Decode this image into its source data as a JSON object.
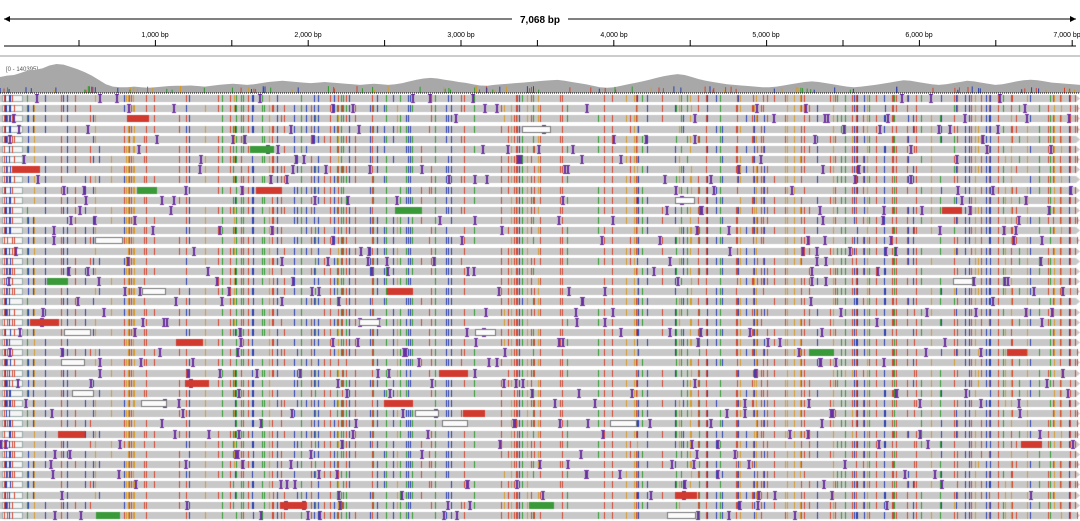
{
  "ruler": {
    "span_label": "7,068 bp",
    "ticks": [
      "1,000 bp",
      "2,000 bp",
      "3,000 bp",
      "4,000 bp",
      "5,000 bp",
      "6,000 bp",
      "7,000 bp"
    ]
  },
  "coverage": {
    "range_label": "[0 - 140395]",
    "profile": [
      0.55,
      0.6,
      0.62,
      0.7,
      0.78,
      0.8,
      0.85,
      0.95,
      1.0,
      0.98,
      0.9,
      0.82,
      0.72,
      0.6,
      0.45,
      0.3,
      0.22,
      0.2,
      0.2,
      0.22,
      0.2,
      0.18,
      0.2,
      0.22,
      0.24,
      0.25,
      0.25,
      0.26,
      0.24,
      0.22,
      0.25,
      0.28,
      0.3,
      0.32,
      0.3,
      0.28,
      0.3,
      0.34,
      0.38,
      0.4,
      0.42,
      0.4,
      0.38,
      0.36,
      0.34,
      0.36,
      0.38,
      0.36,
      0.34,
      0.32,
      0.3,
      0.28,
      0.3,
      0.32,
      0.3,
      0.28,
      0.3,
      0.34,
      0.4,
      0.46,
      0.5,
      0.52,
      0.5,
      0.46,
      0.42,
      0.38,
      0.35,
      0.3,
      0.26,
      0.25,
      0.28,
      0.3,
      0.32,
      0.34,
      0.36,
      0.38,
      0.4,
      0.42,
      0.44,
      0.45,
      0.42,
      0.38,
      0.34,
      0.3,
      0.25,
      0.2,
      0.18,
      0.2,
      0.25,
      0.3,
      0.35,
      0.4,
      0.46,
      0.52,
      0.58,
      0.62,
      0.65,
      0.62,
      0.55,
      0.48,
      0.42,
      0.38,
      0.34,
      0.3,
      0.28,
      0.26,
      0.24,
      0.22,
      0.2,
      0.2,
      0.22,
      0.26,
      0.3,
      0.34,
      0.38,
      0.4,
      0.38,
      0.34,
      0.3,
      0.26,
      0.22,
      0.2,
      0.22,
      0.25,
      0.28,
      0.32,
      0.36,
      0.4,
      0.44,
      0.42,
      0.38,
      0.34,
      0.3,
      0.28,
      0.3,
      0.34,
      0.38,
      0.42,
      0.4,
      0.36,
      0.32,
      0.28,
      0.3,
      0.35,
      0.4,
      0.44,
      0.46,
      0.44,
      0.4,
      0.36,
      0.34,
      0.32,
      0.3,
      0.28
    ]
  },
  "colors": {
    "read": "#c8c8c8",
    "deletion_red": "#d03a2f",
    "insertion_green": "#3a9a3a",
    "soft_clip": "#f4f4f4",
    "base_A": "#2e9a2e",
    "base_C": "#2a3fb0",
    "base_G": "#d59a2a",
    "base_T": "#d2452f",
    "coverage": "#a8a8a8"
  },
  "reads": {
    "row_count": 42
  }
}
